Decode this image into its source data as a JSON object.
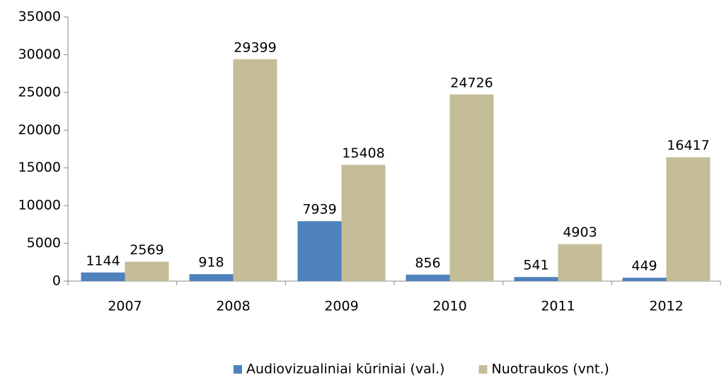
{
  "chart_data": {
    "type": "bar",
    "categories": [
      "2007",
      "2008",
      "2009",
      "2010",
      "2011",
      "2012"
    ],
    "series": [
      {
        "name": "Audiovizualiniai kūriniai (val.)",
        "color": "#4f81bd",
        "values": [
          1144,
          918,
          7939,
          856,
          541,
          449
        ]
      },
      {
        "name": "Nuotraukos (vnt.)",
        "color": "#c4bd97",
        "values": [
          2569,
          29399,
          15408,
          24726,
          4903,
          16417
        ]
      }
    ],
    "ylim": [
      0,
      35000
    ],
    "yticks": [
      0,
      5000,
      10000,
      15000,
      20000,
      25000,
      30000,
      35000
    ],
    "grid": false,
    "legend": "bottom"
  }
}
